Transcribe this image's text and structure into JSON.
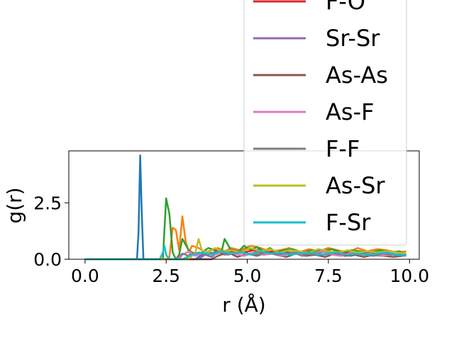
{
  "chart_data": {
    "type": "line",
    "title": "",
    "xlabel": "r (Å)",
    "ylabel": "g(r)",
    "xlim": [
      -0.5,
      10.3
    ],
    "ylim": [
      0,
      4.8
    ],
    "xticks": [
      0.0,
      2.5,
      5.0,
      7.5,
      10.0
    ],
    "xtick_labels": [
      "0.0",
      "2.5",
      "5.0",
      "7.5",
      "10.0"
    ],
    "yticks": [
      0.0,
      2.5
    ],
    "ytick_labels": [
      "0.0",
      "2.5"
    ],
    "grid": false,
    "legend_position": "upper-right",
    "series": [
      {
        "name": "",
        "color": "#1f77b4",
        "x": [
          0.0,
          1.2,
          1.6,
          1.65,
          1.7,
          1.75,
          1.8,
          1.85,
          1.9,
          2.0,
          3.4,
          3.6,
          3.8,
          4.0,
          4.2,
          4.4,
          4.6,
          4.8,
          5.0,
          5.2,
          5.4,
          5.6,
          5.8,
          6.0,
          6.3,
          6.6,
          6.9,
          7.2,
          7.5,
          7.8,
          8.1,
          8.4,
          8.7,
          9.0,
          9.3,
          9.6,
          9.9
        ],
        "y": [
          0.0,
          0.0,
          0.0,
          1.2,
          4.6,
          2.0,
          0.0,
          0.0,
          0.0,
          0.0,
          0.0,
          0.2,
          0.3,
          0.25,
          0.4,
          0.35,
          0.45,
          0.35,
          0.5,
          0.4,
          0.45,
          0.35,
          0.3,
          0.35,
          0.3,
          0.25,
          0.35,
          0.3,
          0.35,
          0.3,
          0.25,
          0.3,
          0.3,
          0.25,
          0.3,
          0.2,
          0.15
        ]
      },
      {
        "name": "",
        "color": "#ff7f0e",
        "x": [
          0.0,
          2.5,
          2.6,
          2.7,
          2.8,
          2.9,
          3.0,
          3.1,
          3.2,
          3.3,
          3.5,
          3.7,
          3.9,
          4.1,
          4.3,
          4.5,
          4.8,
          5.1,
          5.4,
          5.7,
          6.0,
          6.3,
          6.6,
          6.9,
          7.2,
          7.5,
          7.8,
          8.1,
          8.4,
          8.7,
          9.0,
          9.3,
          9.6,
          9.9
        ],
        "y": [
          0.0,
          0.0,
          0.1,
          1.4,
          1.3,
          0.4,
          1.9,
          0.8,
          0.3,
          0.6,
          0.5,
          0.3,
          0.4,
          0.5,
          0.35,
          0.5,
          0.4,
          0.6,
          0.5,
          0.35,
          0.4,
          0.5,
          0.3,
          0.45,
          0.35,
          0.5,
          0.4,
          0.3,
          0.5,
          0.35,
          0.45,
          0.4,
          0.3,
          0.35
        ]
      },
      {
        "name": "",
        "color": "#2ca02c",
        "x": [
          0.0,
          2.2,
          2.4,
          2.5,
          2.6,
          2.7,
          2.8,
          2.9,
          3.0,
          3.2,
          3.4,
          3.6,
          3.8,
          4.0,
          4.2,
          4.3,
          4.5,
          4.7,
          4.9,
          5.1,
          5.3,
          5.5,
          5.7,
          5.9,
          6.1,
          6.4,
          6.7,
          7.0,
          7.3,
          7.6,
          7.9,
          8.2,
          8.5,
          8.8,
          9.1,
          9.4,
          9.7,
          9.9
        ],
        "y": [
          0.0,
          0.0,
          0.0,
          2.7,
          2.0,
          0.3,
          0.0,
          0.2,
          0.9,
          0.4,
          0.2,
          0.3,
          0.5,
          0.4,
          0.3,
          0.9,
          0.4,
          0.3,
          0.6,
          0.4,
          0.55,
          0.35,
          0.5,
          0.3,
          0.4,
          0.45,
          0.3,
          0.4,
          0.35,
          0.45,
          0.3,
          0.4,
          0.35,
          0.3,
          0.4,
          0.3,
          0.35,
          0.2
        ]
      },
      {
        "name": "F-O",
        "color": "#d62728",
        "x": [
          0.0,
          3.1,
          3.3,
          3.5,
          3.7,
          3.9,
          4.1,
          4.3,
          4.6,
          4.9,
          5.2,
          5.5,
          5.8,
          6.1,
          6.4,
          6.7,
          7.0,
          7.3,
          7.6,
          7.9,
          8.2,
          8.5,
          8.8,
          9.1,
          9.4,
          9.7,
          9.9
        ],
        "y": [
          0.0,
          0.0,
          0.3,
          0.2,
          0.35,
          0.25,
          0.4,
          0.3,
          0.35,
          0.3,
          0.4,
          0.25,
          0.35,
          0.3,
          0.25,
          0.35,
          0.3,
          0.2,
          0.3,
          0.25,
          0.3,
          0.2,
          0.25,
          0.3,
          0.2,
          0.25,
          0.2
        ]
      },
      {
        "name": "Sr-Sr",
        "color": "#9467bd",
        "x": [
          0.0,
          3.5,
          3.7,
          3.9,
          4.1,
          4.3,
          4.6,
          4.9,
          5.2,
          5.5,
          5.8,
          6.1,
          6.4,
          6.7,
          7.0,
          7.3,
          7.6,
          7.9,
          8.2,
          8.5,
          8.8,
          9.1,
          9.4,
          9.7,
          9.9
        ],
        "y": [
          0.0,
          0.0,
          0.2,
          0.1,
          0.3,
          0.2,
          0.25,
          0.15,
          0.3,
          0.2,
          0.25,
          0.2,
          0.3,
          0.15,
          0.25,
          0.2,
          0.3,
          0.2,
          0.15,
          0.25,
          0.2,
          0.15,
          0.2,
          0.25,
          0.15
        ]
      },
      {
        "name": "As-As",
        "color": "#8c564b",
        "x": [
          0.0,
          3.9,
          4.1,
          4.4,
          4.7,
          5.0,
          5.3,
          5.6,
          5.9,
          6.2,
          6.5,
          6.8,
          7.1,
          7.4,
          7.7,
          8.0,
          8.3,
          8.6,
          8.9,
          9.2,
          9.5,
          9.8
        ],
        "y": [
          0.0,
          0.0,
          0.15,
          0.3,
          0.1,
          0.25,
          0.15,
          0.3,
          0.2,
          0.1,
          0.25,
          0.15,
          0.2,
          0.1,
          0.25,
          0.15,
          0.2,
          0.1,
          0.2,
          0.15,
          0.1,
          0.15
        ]
      },
      {
        "name": "As-F",
        "color": "#e377c2",
        "x": [
          0.0,
          2.9,
          3.0,
          3.2,
          3.4,
          3.7,
          4.0,
          4.3,
          4.6,
          4.9,
          5.2,
          5.5,
          5.8,
          6.1,
          6.4,
          6.7,
          7.0,
          7.3,
          7.6,
          7.9,
          8.2,
          8.5,
          8.8,
          9.1,
          9.4,
          9.7,
          9.9
        ],
        "y": [
          0.0,
          0.0,
          0.2,
          0.35,
          0.15,
          0.3,
          0.2,
          0.35,
          0.25,
          0.15,
          0.3,
          0.2,
          0.25,
          0.15,
          0.3,
          0.2,
          0.25,
          0.35,
          0.2,
          0.15,
          0.3,
          0.2,
          0.25,
          0.15,
          0.2,
          0.25,
          0.15
        ]
      },
      {
        "name": "F-F",
        "color": "#7f7f7f",
        "x": [
          0.0,
          2.8,
          3.0,
          3.2,
          3.5,
          3.8,
          4.1,
          4.4,
          4.7,
          5.0,
          5.3,
          5.6,
          5.9,
          6.2,
          6.5,
          6.8,
          7.1,
          7.4,
          7.7,
          8.0,
          8.3,
          8.6,
          8.9,
          9.2,
          9.5,
          9.8
        ],
        "y": [
          0.0,
          0.0,
          0.25,
          0.15,
          0.3,
          0.2,
          0.35,
          0.2,
          0.3,
          0.25,
          0.2,
          0.3,
          0.2,
          0.25,
          0.3,
          0.2,
          0.25,
          0.2,
          0.3,
          0.2,
          0.25,
          0.2,
          0.15,
          0.25,
          0.2,
          0.15
        ]
      },
      {
        "name": "As-Sr",
        "color": "#bcbd22",
        "x": [
          0.0,
          3.2,
          3.4,
          3.5,
          3.6,
          3.8,
          4.0,
          4.2,
          4.5,
          4.8,
          5.1,
          5.4,
          5.7,
          6.0,
          6.3,
          6.6,
          6.9,
          7.2,
          7.5,
          7.8,
          8.1,
          8.4,
          8.7,
          9.0,
          9.3,
          9.6,
          9.9
        ],
        "y": [
          0.0,
          0.0,
          0.3,
          0.9,
          0.4,
          0.3,
          0.5,
          0.35,
          0.4,
          0.3,
          0.5,
          0.35,
          0.45,
          0.3,
          0.4,
          0.35,
          0.3,
          0.45,
          0.35,
          0.3,
          0.4,
          0.3,
          0.35,
          0.3,
          0.35,
          0.3,
          0.25
        ]
      },
      {
        "name": "F-Sr",
        "color": "#17becf",
        "x": [
          0.0,
          2.3,
          2.4,
          2.45,
          2.5,
          2.6,
          2.7,
          3.0,
          3.3,
          3.6,
          3.9,
          4.2,
          4.5,
          4.8,
          5.1,
          5.4,
          5.7,
          6.0,
          6.3,
          6.6,
          6.9,
          7.2,
          7.5,
          7.8,
          8.1,
          8.4,
          8.7,
          9.0,
          9.3,
          9.6,
          9.9
        ],
        "y": [
          0.0,
          0.0,
          0.3,
          0.6,
          0.2,
          0.0,
          0.0,
          0.0,
          0.2,
          0.3,
          0.2,
          0.35,
          0.25,
          0.3,
          0.2,
          0.35,
          0.25,
          0.3,
          0.2,
          0.25,
          0.3,
          0.2,
          0.25,
          0.3,
          0.2,
          0.25,
          0.2,
          0.25,
          0.3,
          0.2,
          0.2
        ]
      }
    ]
  }
}
